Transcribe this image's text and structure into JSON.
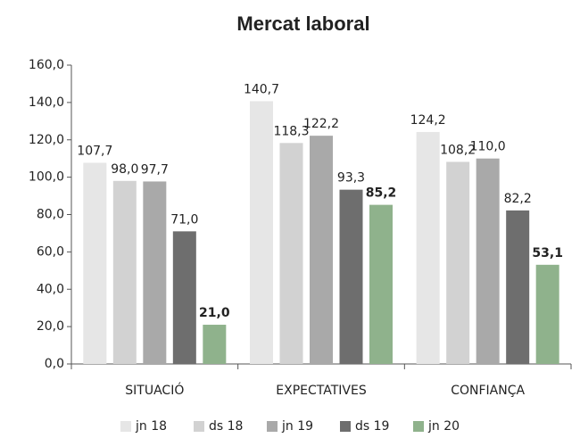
{
  "chart_data": {
    "type": "bar",
    "title": "Mercat laboral",
    "categories": [
      "SITUACIÓ",
      "EXPECTATIVES",
      "CONFIANÇA"
    ],
    "series": [
      {
        "name": "jn 18",
        "color": "#e6e6e6",
        "values": [
          107.7,
          140.7,
          124.2
        ],
        "value_labels": [
          "107,7",
          "140,7",
          "124,2"
        ]
      },
      {
        "name": "ds 18",
        "color": "#d2d2d2",
        "values": [
          98.0,
          118.3,
          108.2
        ],
        "value_labels": [
          "98,0",
          "118,3",
          "108,2"
        ]
      },
      {
        "name": "jn 19",
        "color": "#a9a9a9",
        "values": [
          97.7,
          122.2,
          110.0
        ],
        "value_labels": [
          "97,7",
          "122,2",
          "110,0"
        ]
      },
      {
        "name": "ds 19",
        "color": "#6e6e6e",
        "values": [
          71.0,
          93.3,
          82.2
        ],
        "value_labels": [
          "71,0",
          "93,3",
          "82,2"
        ]
      },
      {
        "name": "jn 20",
        "color": "#8fb28c",
        "values": [
          21.0,
          85.2,
          53.1
        ],
        "value_labels": [
          "21,0",
          "85,2",
          "53,1"
        ]
      }
    ],
    "ylim": [
      0,
      160
    ],
    "yticks": [
      {
        "value": 0,
        "label": "0,0"
      },
      {
        "value": 20,
        "label": "20,0"
      },
      {
        "value": 40,
        "label": "40,0"
      },
      {
        "value": 60,
        "label": "60,0"
      },
      {
        "value": 80,
        "label": "80,0"
      },
      {
        "value": 100,
        "label": "100,0"
      },
      {
        "value": 120,
        "label": "120,0"
      },
      {
        "value": 140,
        "label": "140,0"
      },
      {
        "value": 160,
        "label": "160,0"
      }
    ],
    "grid": false
  }
}
